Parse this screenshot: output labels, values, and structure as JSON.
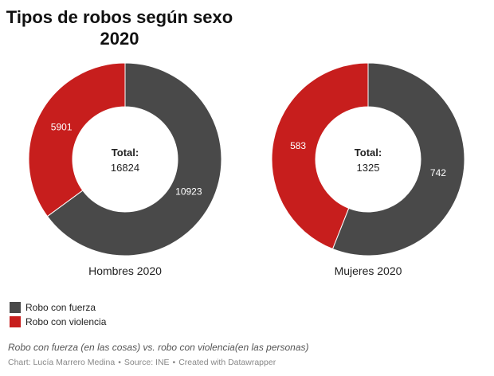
{
  "title_line1": "Tipos de robos según sexo",
  "title_line2": "2020",
  "chart_data": {
    "type": "pie",
    "title": "Tipos de robos según sexo 2020",
    "series_names": [
      "Robo con fuerza",
      "Robo con violencia"
    ],
    "colors": [
      "#494949",
      "#c71e1d"
    ],
    "charts": [
      {
        "label": "Hombres 2020",
        "total_label": "Total:",
        "total": "16824",
        "values": [
          10923,
          5901
        ]
      },
      {
        "label": "Mujeres 2020",
        "total_label": "Total:",
        "total": "1325",
        "values": [
          742,
          583
        ]
      }
    ]
  },
  "legend": [
    {
      "label": "Robo con fuerza",
      "color": "#494949"
    },
    {
      "label": "Robo con violencia",
      "color": "#c71e1d"
    }
  ],
  "note": "Robo con fuerza (en las cosas) vs. robo con violencia(en las personas)",
  "credits": {
    "chart_by": "Chart: Lucía Marrero Medina",
    "source": "Source: INE",
    "created_with": "Created with Datawrapper"
  }
}
